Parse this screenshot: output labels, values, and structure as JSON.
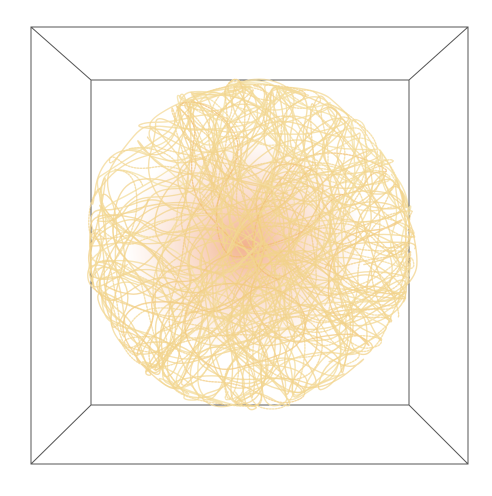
{
  "scene": {
    "background": "#ffffff",
    "frame_color": "#555555",
    "palette": {
      "outer": "#f4ecb6",
      "mid": "#f2cf86",
      "inner": "#ee9a48",
      "core": "#e0652a"
    },
    "glow_center": "#e87434"
  }
}
